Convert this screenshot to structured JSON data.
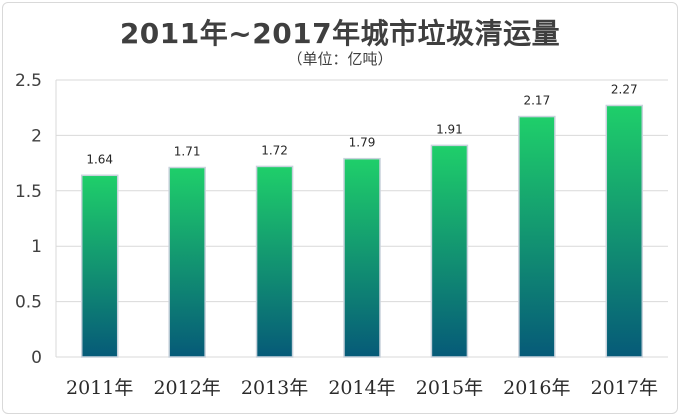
{
  "chart_data": {
    "type": "bar",
    "title": "2011年~2017年城市垃圾清运量",
    "subtitle": "（单位：亿吨）",
    "categories": [
      "2011年",
      "2012年",
      "2013年",
      "2014年",
      "2015年",
      "2016年",
      "2017年"
    ],
    "values": [
      1.64,
      1.71,
      1.72,
      1.79,
      1.91,
      2.17,
      2.27
    ],
    "data_labels": [
      "1.64",
      "1.71",
      "1.72",
      "1.79",
      "1.91",
      "2.17",
      "2.27"
    ],
    "ylim": [
      0,
      2.5
    ],
    "yticks": [
      "0",
      "0.5",
      "1",
      "1.5",
      "2",
      "2.5"
    ],
    "ytick_values": [
      0,
      0.5,
      1,
      1.5,
      2,
      2.5
    ],
    "grid": true,
    "legend": "none",
    "xlabel": "",
    "ylabel": "",
    "colors": {
      "bar_top": "#1fcf6a",
      "bar_bottom": "#065a78",
      "bar_edge": "#c8d2dc",
      "grid": "#d9d9d9"
    }
  }
}
